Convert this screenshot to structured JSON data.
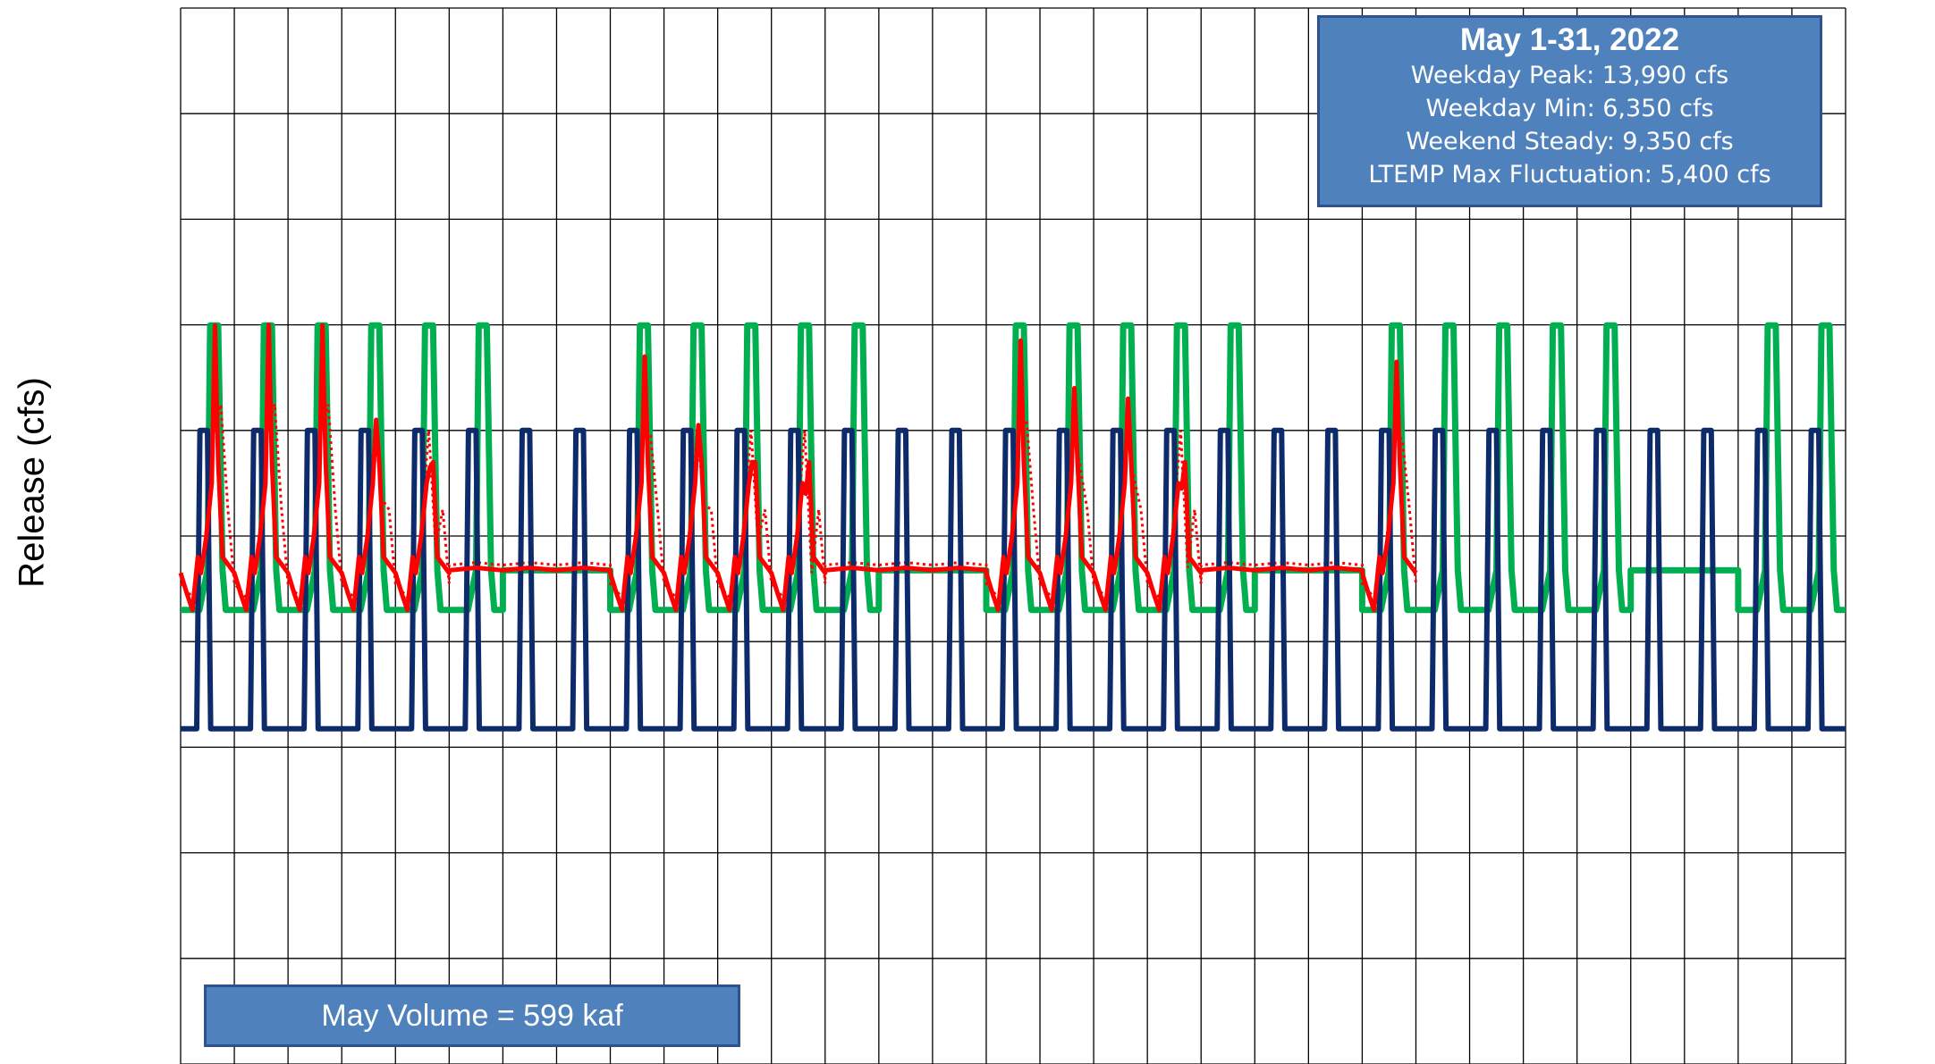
{
  "chart_data": {
    "type": "line",
    "title": "",
    "xlabel": "",
    "ylabel": "Release (cfs)",
    "grid": true,
    "ylim": [
      0,
      20000
    ],
    "xlim": [
      0,
      31
    ],
    "annotations": {
      "summary_title": "May 1-31, 2022",
      "summary_lines": [
        "Weekday Peak: 13,990 cfs",
        "Weekday Min: 6,350 cfs",
        "Weekend Steady: 9,350 cfs",
        "LTEMP Max Fluctuation: 5,400 cfs"
      ],
      "volume_label": "May Volume = 599 kaf"
    },
    "series": [
      {
        "name": "",
        "color": "#0d2b6b",
        "pattern": "daily fluctuation",
        "high": 12000,
        "low": 6350,
        "rise_start": 0.3,
        "rise_end": 0.36,
        "fall_start": 0.5,
        "fall_end": 0.56,
        "days": 31
      },
      {
        "name": "",
        "color": "#00b050",
        "pattern": "weekday peak / weekend steady",
        "base": 8600,
        "steady": 9350,
        "peak": 13990,
        "weekend_days": [
          6,
          7,
          13,
          14,
          20,
          21,
          27,
          28
        ],
        "days": 31
      },
      {
        "name": "",
        "color": "#ff0000",
        "style": "solid",
        "coverage_days": 23,
        "daily_peaks": [
          13990,
          14000,
          13990,
          12200,
          11300,
          9350,
          9350,
          13990,
          13400,
          12100,
          11400,
          10800,
          9350,
          9350,
          13300,
          13700,
          12800,
          12600,
          10900,
          9350,
          9350,
          9800,
          13300
        ]
      },
      {
        "name": "",
        "color": "#ff0000",
        "style": "dotted",
        "coverage_days": 23
      }
    ]
  }
}
